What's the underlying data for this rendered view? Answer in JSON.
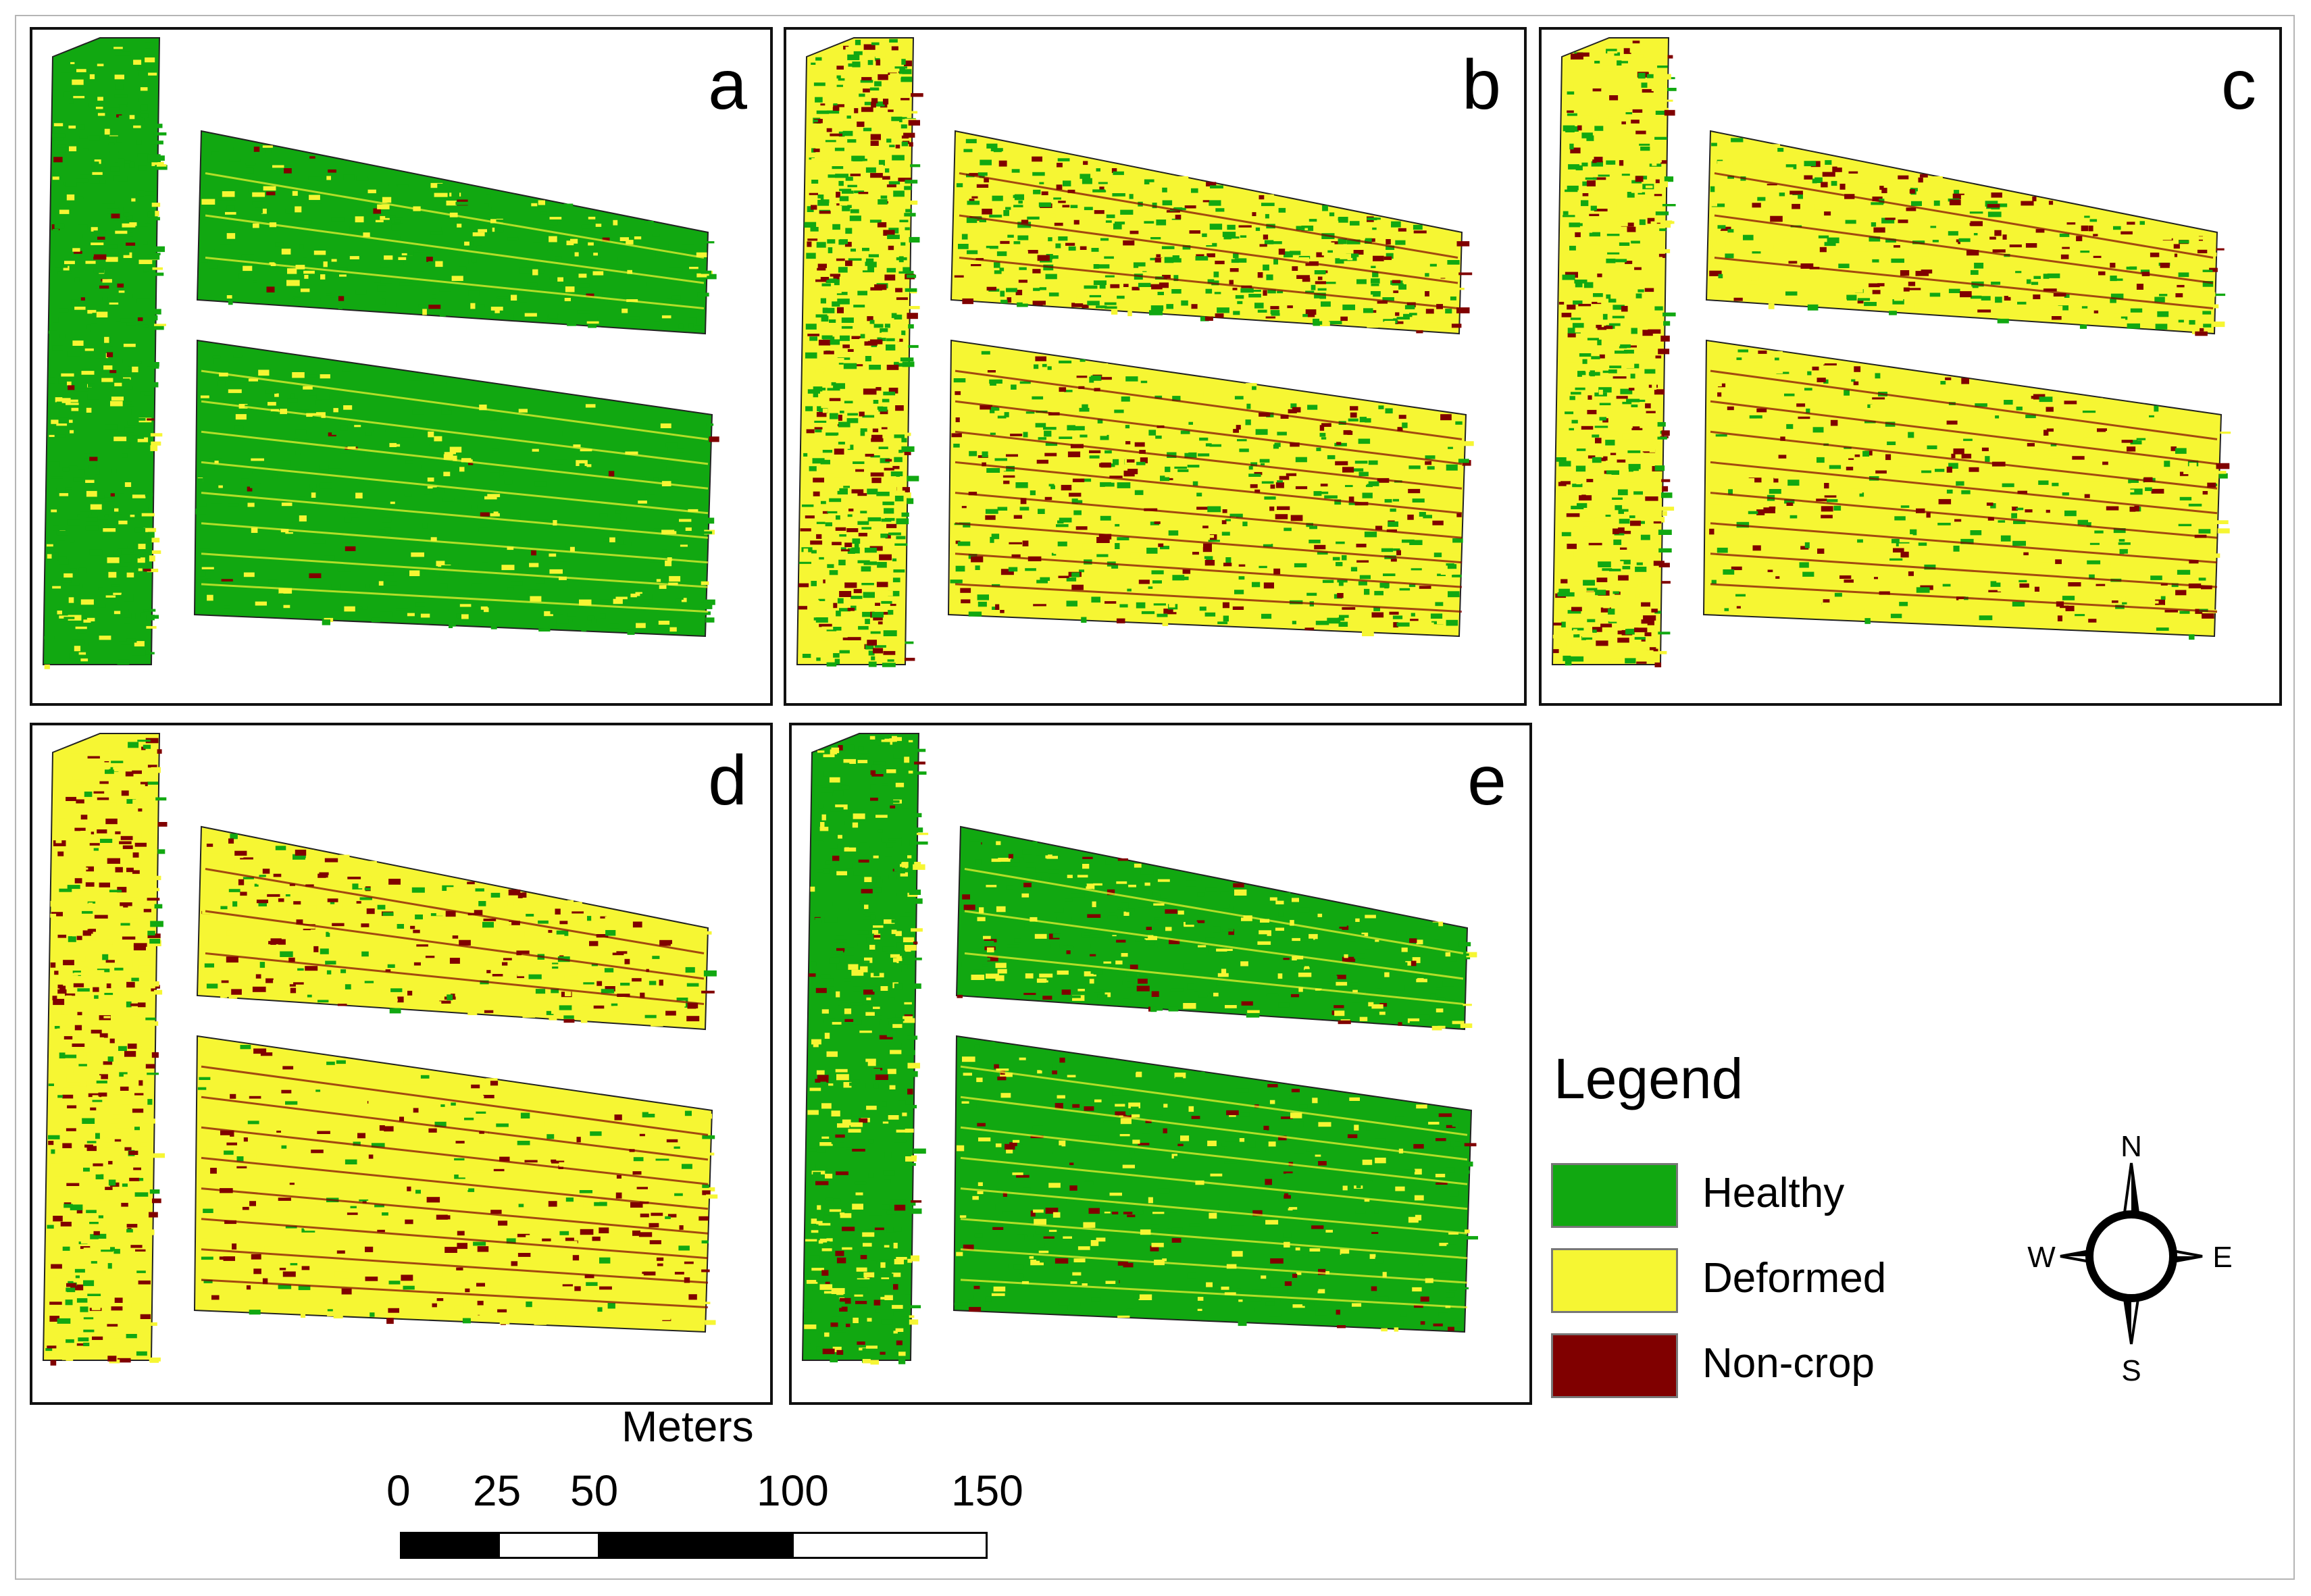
{
  "panels": [
    {
      "label": "a",
      "distribution": [
        0.84,
        0.14,
        0.02
      ]
    },
    {
      "label": "b",
      "distribution": [
        0.38,
        0.44,
        0.18
      ]
    },
    {
      "label": "c",
      "distribution": [
        0.2,
        0.64,
        0.16
      ]
    },
    {
      "label": "d",
      "distribution": [
        0.12,
        0.7,
        0.18
      ]
    },
    {
      "label": "e",
      "distribution": [
        0.72,
        0.2,
        0.08
      ]
    }
  ],
  "legend": {
    "title": "Legend",
    "items": [
      {
        "label": "Healthy",
        "color": "#11a811"
      },
      {
        "label": "Deformed",
        "color": "#f6f633"
      },
      {
        "label": "Non-crop",
        "color": "#800000"
      }
    ]
  },
  "compass": {
    "north": "N",
    "south": "S",
    "east": "E",
    "west": "W"
  },
  "scale_bar": {
    "unit": "Meters",
    "ticks": [
      {
        "value": 0,
        "label": "0"
      },
      {
        "value": 25,
        "label": "25"
      },
      {
        "value": 50,
        "label": "50"
      },
      {
        "value": 100,
        "label": "100"
      },
      {
        "value": 150,
        "label": "150"
      }
    ]
  }
}
